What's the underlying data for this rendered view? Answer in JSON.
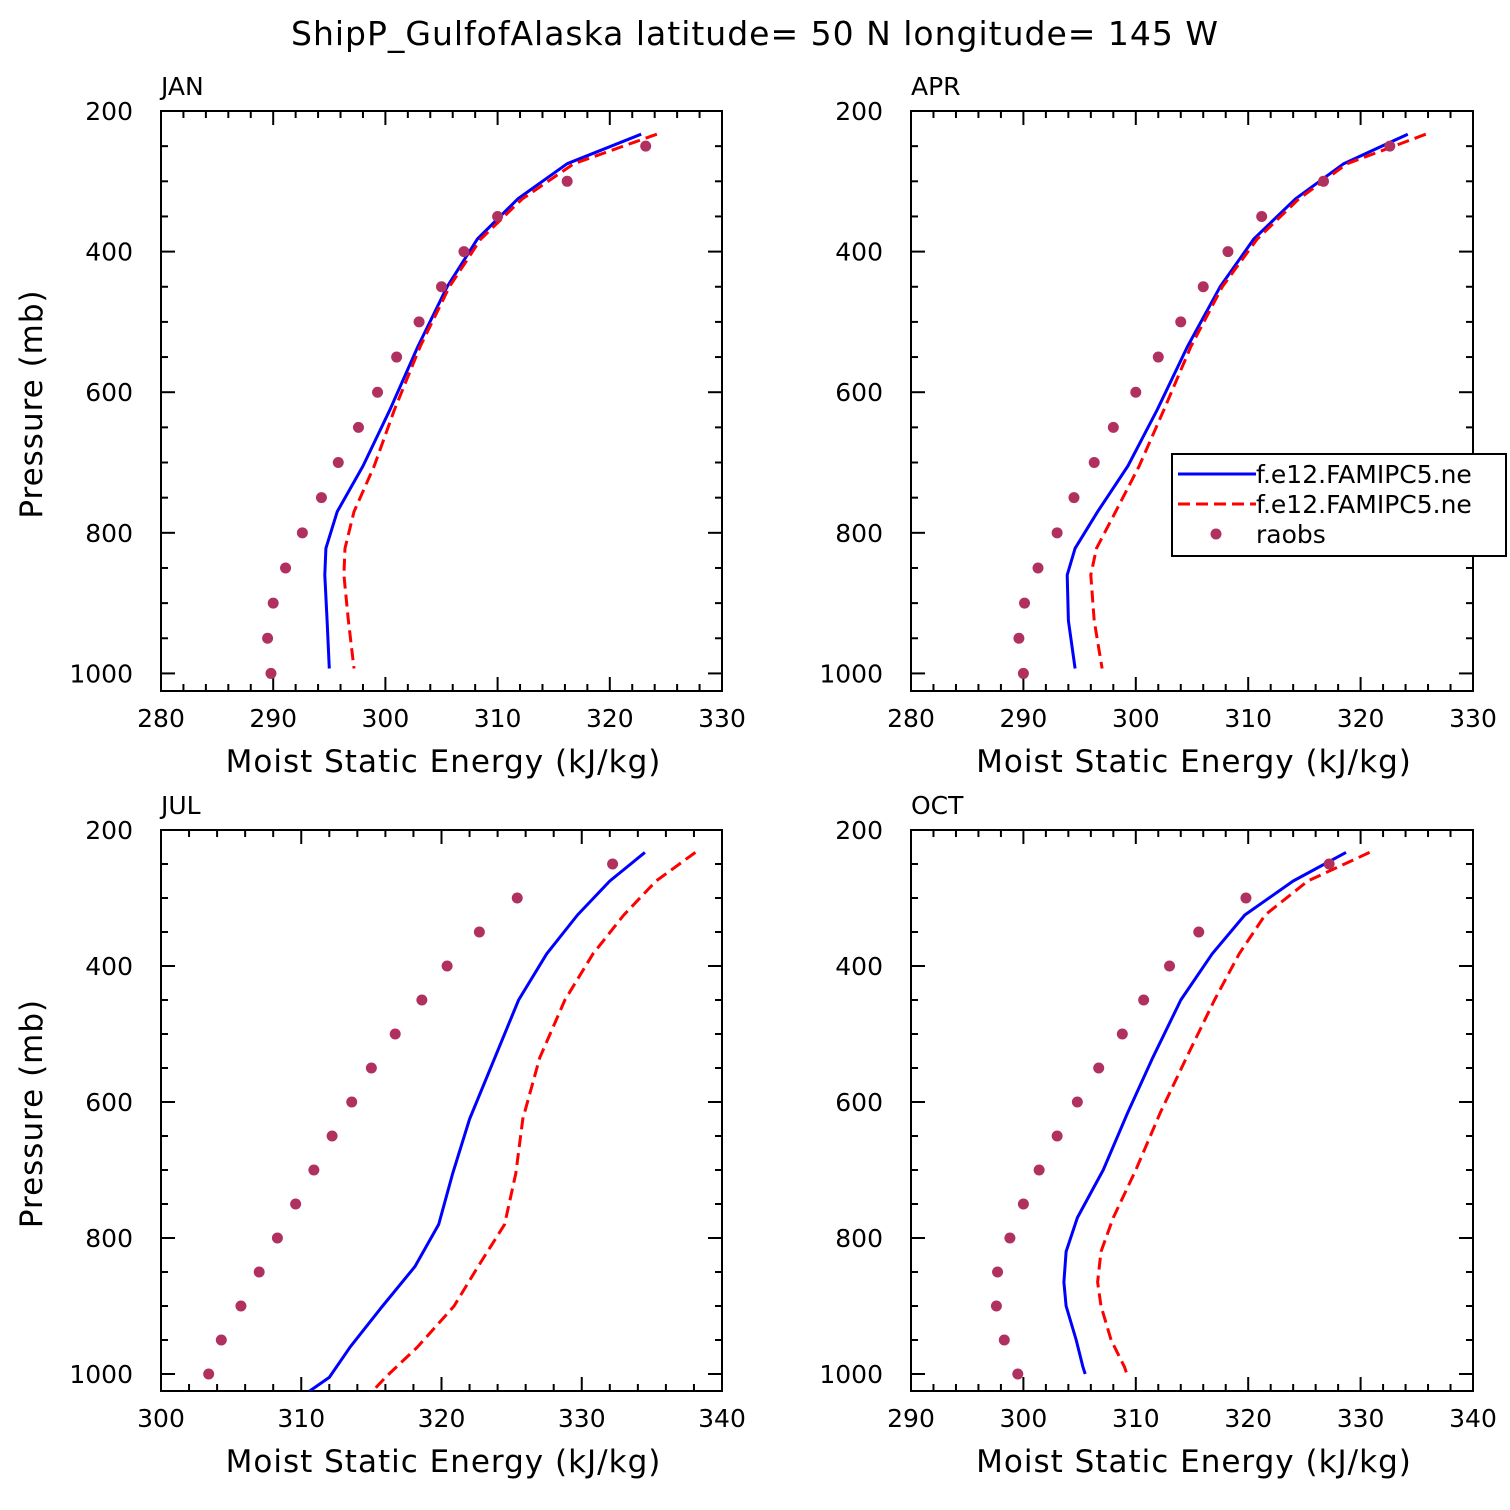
{
  "suptitle": "ShipP_GulfofAlaska  latitude= 50 N longitude= 145 W",
  "legend": {
    "entries": [
      {
        "label": "f.e12.FAMIPC5.ne",
        "color": "#0000ff",
        "style": "solid"
      },
      {
        "label": "f.e12.FAMIPC5.ne",
        "color": "#ff0000",
        "style": "dashed"
      },
      {
        "label": "raobs",
        "color": "#b03060",
        "style": "marker"
      }
    ]
  },
  "chart_data": [
    {
      "type": "line",
      "title": "JAN",
      "xlabel": "Moist Static Energy (kJ/kg)",
      "ylabel": "Pressure (mb)",
      "xlim": [
        280,
        330
      ],
      "ylim": [
        200,
        1025
      ],
      "xticks": [
        280,
        290,
        300,
        310,
        320,
        330
      ],
      "yticks": [
        200,
        400,
        600,
        800,
        1000
      ],
      "series": [
        {
          "name": "f.e12.FAMIPC5.ne",
          "color": "#0000ff",
          "style": "solid",
          "x": [
            322.8,
            316.2,
            311.8,
            308.2,
            305.5,
            302.9,
            300.4,
            298.0,
            295.7,
            294.7,
            294.6,
            294.8,
            295.0
          ],
          "y": [
            233,
            275,
            325,
            382,
            450,
            535,
            625,
            705,
            770,
            822,
            860,
            925,
            993
          ]
        },
        {
          "name": "f.e12.FAMIPC5.ne",
          "color": "#ff0000",
          "style": "dashed",
          "x": [
            324.2,
            316.8,
            312.2,
            308.5,
            305.7,
            303.1,
            300.8,
            299.0,
            297.2,
            296.4,
            296.3,
            296.7,
            297.2
          ],
          "y": [
            233,
            275,
            325,
            382,
            450,
            535,
            625,
            705,
            770,
            822,
            860,
            925,
            993
          ]
        },
        {
          "name": "raobs",
          "color": "#b03060",
          "style": "marker",
          "x": [
            323.2,
            316.2,
            310.0,
            307.0,
            305.0,
            303.0,
            301.0,
            299.3,
            297.6,
            295.8,
            294.3,
            292.6,
            291.1,
            290.0,
            289.5,
            289.8
          ],
          "y": [
            250,
            300,
            350,
            400,
            450,
            500,
            550,
            600,
            650,
            700,
            750,
            800,
            850,
            900,
            950,
            1000
          ]
        }
      ]
    },
    {
      "type": "line",
      "title": "APR",
      "xlabel": "Moist Static Energy (kJ/kg)",
      "ylabel": "Pressure (mb)",
      "xlim": [
        280,
        330
      ],
      "ylim": [
        200,
        1025
      ],
      "xticks": [
        280,
        290,
        300,
        310,
        320,
        330
      ],
      "yticks": [
        200,
        400,
        600,
        800,
        1000
      ],
      "series": [
        {
          "name": "f.e12.FAMIPC5.ne",
          "color": "#0000ff",
          "style": "solid",
          "x": [
            324.2,
            318.5,
            314.2,
            310.5,
            307.5,
            304.6,
            301.9,
            299.3,
            296.6,
            294.6,
            293.9,
            294.0,
            294.6
          ],
          "y": [
            233,
            275,
            325,
            382,
            450,
            535,
            625,
            705,
            770,
            822,
            860,
            925,
            993
          ]
        },
        {
          "name": "f.e12.FAMIPC5.ne",
          "color": "#ff0000",
          "style": "dashed",
          "x": [
            325.8,
            318.8,
            314.5,
            310.8,
            307.7,
            304.9,
            302.5,
            300.3,
            298.2,
            296.5,
            296.0,
            296.3,
            297.0
          ],
          "y": [
            233,
            275,
            325,
            382,
            450,
            535,
            625,
            705,
            770,
            822,
            860,
            925,
            993
          ]
        },
        {
          "name": "raobs",
          "color": "#b03060",
          "style": "marker",
          "x": [
            322.6,
            316.7,
            311.2,
            308.2,
            306.0,
            304.0,
            302.0,
            300.0,
            298.0,
            296.3,
            294.5,
            293.0,
            291.3,
            290.1,
            289.6,
            290.0
          ],
          "y": [
            250,
            300,
            350,
            400,
            450,
            500,
            550,
            600,
            650,
            700,
            750,
            800,
            850,
            900,
            950,
            1000
          ]
        }
      ]
    },
    {
      "type": "line",
      "title": "JUL",
      "xlabel": "Moist Static Energy (kJ/kg)",
      "ylabel": "Pressure (mb)",
      "xlim": [
        300,
        340
      ],
      "ylim": [
        200,
        1025
      ],
      "xticks": [
        300,
        310,
        320,
        330,
        340
      ],
      "yticks": [
        200,
        400,
        600,
        800,
        1000
      ],
      "series": [
        {
          "name": "f.e12.FAMIPC5.ne",
          "color": "#0000ff",
          "style": "solid",
          "x": [
            334.5,
            332.0,
            329.7,
            327.5,
            325.5,
            323.8,
            322.0,
            320.8,
            319.8,
            318.1,
            315.8,
            313.5,
            312.0,
            310.6
          ],
          "y": [
            233,
            275,
            325,
            382,
            450,
            535,
            625,
            705,
            780,
            842,
            900,
            960,
            1005,
            1025
          ]
        },
        {
          "name": "f.e12.FAMIPC5.ne",
          "color": "#ff0000",
          "style": "dashed",
          "x": [
            338.1,
            335.3,
            333.0,
            330.8,
            328.8,
            327.0,
            325.8,
            325.3,
            324.5,
            322.6,
            320.9,
            318.3,
            316.0,
            315.1
          ],
          "y": [
            233,
            275,
            325,
            382,
            450,
            535,
            625,
            705,
            780,
            842,
            900,
            960,
            1005,
            1025
          ]
        },
        {
          "name": "raobs",
          "color": "#b03060",
          "style": "marker",
          "x": [
            332.2,
            325.4,
            322.7,
            320.4,
            318.6,
            316.7,
            315.0,
            313.6,
            312.2,
            310.9,
            309.6,
            308.3,
            307.0,
            305.7,
            304.3,
            303.4
          ],
          "y": [
            250,
            300,
            350,
            400,
            450,
            500,
            550,
            600,
            650,
            700,
            750,
            800,
            850,
            900,
            950,
            1000
          ]
        }
      ]
    },
    {
      "type": "line",
      "title": "OCT",
      "xlabel": "Moist Static Energy (kJ/kg)",
      "ylabel": "Pressure (mb)",
      "xlim": [
        290,
        340
      ],
      "ylim": [
        200,
        1025
      ],
      "xticks": [
        290,
        300,
        310,
        320,
        330,
        340
      ],
      "yticks": [
        200,
        400,
        600,
        800,
        1000
      ],
      "series": [
        {
          "name": "f.e12.FAMIPC5.ne",
          "color": "#0000ff",
          "style": "solid",
          "x": [
            328.7,
            324.0,
            319.7,
            316.8,
            314.0,
            311.5,
            309.3,
            307.1,
            304.8,
            303.8,
            303.6,
            303.8,
            304.7,
            305.3,
            305.5
          ],
          "y": [
            233,
            275,
            325,
            382,
            450,
            535,
            615,
            700,
            770,
            820,
            865,
            900,
            950,
            990,
            1000
          ]
        },
        {
          "name": "f.e12.FAMIPC5.ne",
          "color": "#ff0000",
          "style": "dashed",
          "x": [
            330.8,
            325.3,
            321.5,
            319.2,
            317.0,
            314.5,
            312.2,
            310.0,
            308.0,
            306.9,
            306.6,
            306.9,
            307.8,
            309.0,
            309.2
          ],
          "y": [
            233,
            275,
            325,
            382,
            450,
            535,
            615,
            700,
            770,
            820,
            865,
            900,
            950,
            990,
            1000
          ]
        },
        {
          "name": "raobs",
          "color": "#b03060",
          "style": "marker",
          "x": [
            327.2,
            319.8,
            315.6,
            313.0,
            310.7,
            308.8,
            306.7,
            304.8,
            303.0,
            301.4,
            300.0,
            298.8,
            297.7,
            297.6,
            298.3,
            299.5
          ],
          "y": [
            250,
            300,
            350,
            400,
            450,
            500,
            550,
            600,
            650,
            700,
            750,
            800,
            850,
            900,
            950,
            1000
          ]
        }
      ]
    }
  ]
}
